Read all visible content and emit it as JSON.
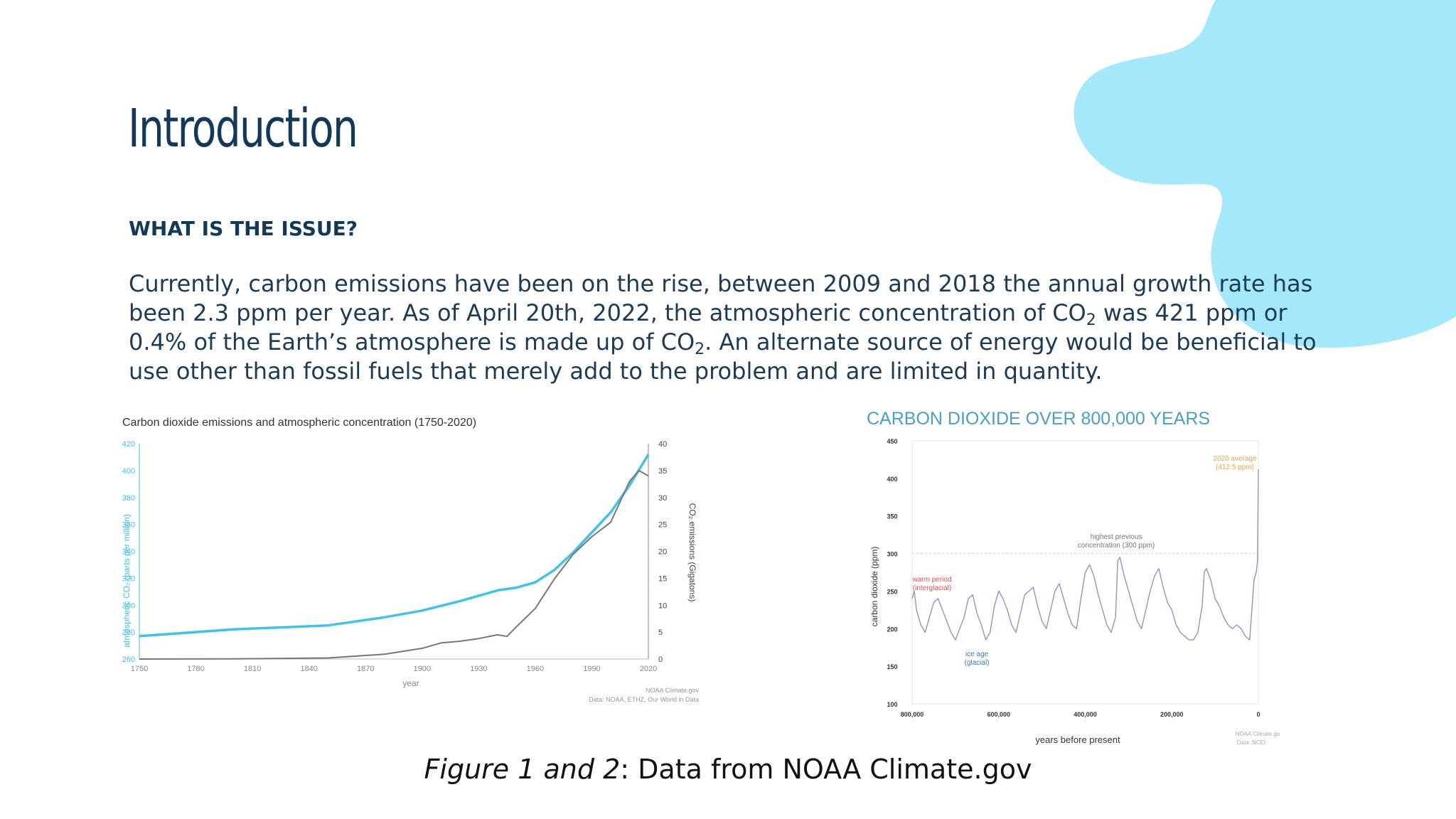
{
  "slide": {
    "title": "Introduction",
    "subheading": "WHAT IS THE ISSUE?",
    "body": {
      "line1": "Currently, carbon emissions have been on the rise, between 2009 and 2018 the annual growth rate has",
      "line2_a": "been 2.3 ppm per year.  As of April 20th, 2022, the atmospheric concentration of CO",
      "line2_sub": "2",
      "line2_b": " was 421 ppm or",
      "line3_a": "0.4% of the Earth’s atmosphere is made up of CO",
      "line3_sub": "2",
      "line3_b": ".  An alternate source of energy would be beneficial to",
      "line4": "use other than fossil fuels that merely add to the problem and are limited in quantity."
    },
    "caption": {
      "italic": "Figure 1 and 2",
      "rest": ": Data from NOAA Climate.gov"
    },
    "colors": {
      "blob": "#a3e8fb",
      "title": "#12385a",
      "text": "#1b3b57",
      "co2_line": "#3ec3ea",
      "emissions_line": "#777777"
    }
  },
  "chart_data": [
    {
      "type": "line",
      "title": "Carbon dioxide emissions and atmospheric concentration (1750-2020)",
      "xlabel": "year",
      "ylabel_left": "atmospheric CO₂ (parts per million)",
      "ylabel_right": "CO₂ emissions (Gigatons)",
      "x_ticks": [
        "1750",
        "1780",
        "1810",
        "1840",
        "1870",
        "1900",
        "1930",
        "1960",
        "1990",
        "2020"
      ],
      "y_left_ticks": [
        "260",
        "280",
        "300",
        "320",
        "340",
        "360",
        "380",
        "400",
        "420"
      ],
      "y_right_ticks": [
        "0",
        "5",
        "10",
        "15",
        "20",
        "25",
        "30",
        "35",
        "40"
      ],
      "xlim": [
        1750,
        2020
      ],
      "ylim_left": [
        260,
        420
      ],
      "ylim_right": [
        0,
        40
      ],
      "source_line1": "NOAA Climate.gov",
      "source_line2": "Data: NOAA, ETHZ, Our World in Data",
      "series": [
        {
          "name": "atmospheric CO₂ (ppm)",
          "axis": "left",
          "x": [
            1750,
            1800,
            1850,
            1880,
            1900,
            1920,
            1940,
            1950,
            1960,
            1970,
            1980,
            1990,
            2000,
            2010,
            2020
          ],
          "values": [
            277,
            282,
            285,
            291,
            296,
            303,
            311,
            313,
            317,
            326,
            339,
            354,
            369,
            389,
            412
          ]
        },
        {
          "name": "CO₂ emissions (Gt)",
          "axis": "right",
          "x": [
            1750,
            1800,
            1850,
            1880,
            1900,
            1910,
            1920,
            1930,
            1940,
            1945,
            1950,
            1960,
            1970,
            1980,
            1990,
            2000,
            2010,
            2015,
            2020
          ],
          "values": [
            0,
            0.03,
            0.2,
            0.9,
            2,
            3,
            3.3,
            3.8,
            4.5,
            4.2,
            6,
            9.4,
            14.8,
            19.4,
            22.7,
            25.4,
            33,
            35,
            34
          ]
        }
      ]
    },
    {
      "type": "line",
      "title": "CARBON DIOXIDE OVER 800,000 YEARS",
      "xlabel": "years before present",
      "ylabel": "carbon dioxide (ppm)",
      "x_ticks": [
        "800,000",
        "600,000",
        "400,000",
        "200,000",
        "0"
      ],
      "y_ticks": [
        "100",
        "150",
        "200",
        "250",
        "300",
        "350",
        "400",
        "450"
      ],
      "xlim": [
        800000,
        0
      ],
      "ylim": [
        100,
        450
      ],
      "reference_line_ppm": 300,
      "annotations": {
        "avg_line1": "2020 average",
        "avg_line2": "(412.5 ppm)",
        "highest_line1": "highest previous",
        "highest_line2": "concentration (300 ppm)",
        "warm_line1": "warm period",
        "warm_line2": "(interglacial)",
        "ice_line1": "ice age",
        "ice_line2": "(glacial)"
      },
      "source_line1": "NOAA Climate.gov",
      "source_line2": "Data: NCEI",
      "series": [
        {
          "name": "CO₂ (ppm)",
          "x": [
            800000,
            795000,
            790000,
            780000,
            770000,
            760000,
            750000,
            740000,
            730000,
            720000,
            710000,
            700000,
            690000,
            680000,
            670000,
            660000,
            650000,
            640000,
            630000,
            620000,
            610000,
            600000,
            590000,
            580000,
            570000,
            560000,
            550000,
            540000,
            530000,
            520000,
            510000,
            500000,
            490000,
            480000,
            470000,
            460000,
            450000,
            440000,
            430000,
            420000,
            410000,
            400000,
            390000,
            380000,
            370000,
            360000,
            350000,
            340000,
            330000,
            325000,
            320000,
            310000,
            300000,
            290000,
            280000,
            270000,
            260000,
            250000,
            240000,
            230000,
            220000,
            210000,
            200000,
            190000,
            180000,
            170000,
            160000,
            150000,
            140000,
            130000,
            125000,
            120000,
            110000,
            100000,
            90000,
            80000,
            70000,
            60000,
            50000,
            40000,
            30000,
            20000,
            10000,
            5000,
            2000,
            0
          ],
          "values": [
            240,
            250,
            225,
            205,
            195,
            215,
            235,
            240,
            225,
            210,
            195,
            185,
            200,
            215,
            240,
            245,
            220,
            205,
            185,
            195,
            230,
            250,
            240,
            225,
            205,
            195,
            220,
            245,
            250,
            255,
            230,
            210,
            200,
            225,
            250,
            260,
            240,
            220,
            205,
            200,
            240,
            275,
            285,
            270,
            245,
            225,
            205,
            195,
            215,
            290,
            295,
            270,
            250,
            230,
            210,
            200,
            225,
            250,
            270,
            280,
            255,
            235,
            225,
            205,
            195,
            190,
            185,
            185,
            195,
            230,
            275,
            280,
            265,
            240,
            230,
            215,
            205,
            200,
            205,
            200,
            190,
            185,
            265,
            275,
            290,
            412
          ]
        }
      ]
    }
  ]
}
